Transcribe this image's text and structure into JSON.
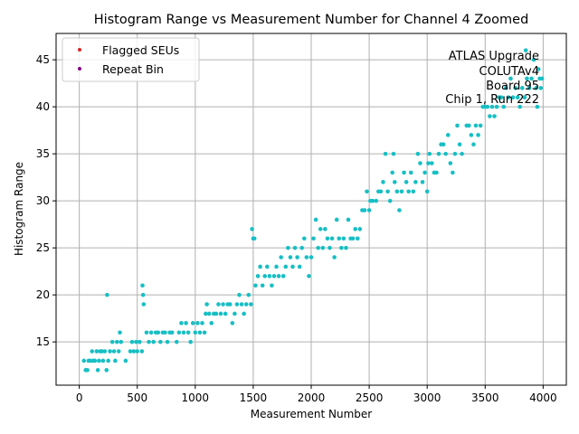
{
  "chart_data": {
    "type": "scatter",
    "title": "Histogram Range vs Measurement Number for Channel 4 Zoomed",
    "xlabel": "Measurement Number",
    "ylabel": "Histogram Range",
    "xlim": [
      -200,
      4200
    ],
    "ylim": [
      10.4,
      47.8
    ],
    "xticks": [
      0,
      500,
      1000,
      1500,
      2000,
      2500,
      3000,
      3500,
      4000
    ],
    "yticks": [
      15,
      20,
      25,
      30,
      35,
      40,
      45
    ],
    "grid": true,
    "legend": {
      "placement": "top-left",
      "entries": [
        {
          "label": "Flagged SEUs",
          "color": "#d62728"
        },
        {
          "label": "Repeat Bin",
          "color": "#800080"
        }
      ]
    },
    "annotation": {
      "placement": "top-right",
      "lines": [
        "ATLAS Upgrade",
        "COLUTAv4",
        "Board 95",
        "Chip 1, Run 222"
      ]
    },
    "series": [
      {
        "name": "Histogram Range",
        "color": "#17bfc4",
        "points": [
          [
            40,
            13
          ],
          [
            55,
            12
          ],
          [
            70,
            12
          ],
          [
            80,
            13
          ],
          [
            95,
            13
          ],
          [
            110,
            14
          ],
          [
            120,
            13
          ],
          [
            135,
            13
          ],
          [
            150,
            14
          ],
          [
            160,
            12
          ],
          [
            170,
            13
          ],
          [
            180,
            14
          ],
          [
            195,
            14
          ],
          [
            205,
            13
          ],
          [
            220,
            14
          ],
          [
            235,
            12
          ],
          [
            240,
            20
          ],
          [
            250,
            13
          ],
          [
            265,
            14
          ],
          [
            285,
            15
          ],
          [
            300,
            14
          ],
          [
            310,
            13
          ],
          [
            325,
            15
          ],
          [
            340,
            14
          ],
          [
            350,
            16
          ],
          [
            360,
            15
          ],
          [
            400,
            13
          ],
          [
            440,
            14
          ],
          [
            455,
            15
          ],
          [
            470,
            14
          ],
          [
            490,
            15
          ],
          [
            500,
            14
          ],
          [
            520,
            15
          ],
          [
            540,
            14
          ],
          [
            545,
            21
          ],
          [
            550,
            20
          ],
          [
            555,
            19
          ],
          [
            580,
            16
          ],
          [
            600,
            15
          ],
          [
            620,
            16
          ],
          [
            640,
            15
          ],
          [
            660,
            16
          ],
          [
            680,
            16
          ],
          [
            700,
            15
          ],
          [
            720,
            16
          ],
          [
            740,
            16
          ],
          [
            760,
            15
          ],
          [
            780,
            16
          ],
          [
            800,
            16
          ],
          [
            840,
            15
          ],
          [
            860,
            16
          ],
          [
            880,
            17
          ],
          [
            900,
            16
          ],
          [
            920,
            17
          ],
          [
            940,
            16
          ],
          [
            960,
            15
          ],
          [
            980,
            17
          ],
          [
            1000,
            16
          ],
          [
            1020,
            17
          ],
          [
            1040,
            16
          ],
          [
            1060,
            17
          ],
          [
            1080,
            16
          ],
          [
            1090,
            18
          ],
          [
            1100,
            19
          ],
          [
            1120,
            18
          ],
          [
            1140,
            17
          ],
          [
            1160,
            18
          ],
          [
            1180,
            18
          ],
          [
            1200,
            19
          ],
          [
            1220,
            18
          ],
          [
            1240,
            19
          ],
          [
            1260,
            18
          ],
          [
            1280,
            19
          ],
          [
            1300,
            19
          ],
          [
            1320,
            17
          ],
          [
            1340,
            18
          ],
          [
            1360,
            19
          ],
          [
            1380,
            20
          ],
          [
            1400,
            19
          ],
          [
            1420,
            18
          ],
          [
            1440,
            19
          ],
          [
            1460,
            20
          ],
          [
            1480,
            19
          ],
          [
            1490,
            27
          ],
          [
            1500,
            26
          ],
          [
            1510,
            26
          ],
          [
            1520,
            21
          ],
          [
            1540,
            22
          ],
          [
            1560,
            23
          ],
          [
            1580,
            21
          ],
          [
            1600,
            22
          ],
          [
            1620,
            23
          ],
          [
            1640,
            22
          ],
          [
            1660,
            21
          ],
          [
            1680,
            22
          ],
          [
            1700,
            23
          ],
          [
            1720,
            22
          ],
          [
            1740,
            24
          ],
          [
            1760,
            22
          ],
          [
            1780,
            23
          ],
          [
            1800,
            25
          ],
          [
            1820,
            24
          ],
          [
            1840,
            23
          ],
          [
            1860,
            25
          ],
          [
            1880,
            24
          ],
          [
            1900,
            23
          ],
          [
            1920,
            25
          ],
          [
            1940,
            26
          ],
          [
            1960,
            24
          ],
          [
            1980,
            22
          ],
          [
            2000,
            24
          ],
          [
            2020,
            26
          ],
          [
            2040,
            28
          ],
          [
            2060,
            25
          ],
          [
            2080,
            27
          ],
          [
            2100,
            25
          ],
          [
            2120,
            27
          ],
          [
            2140,
            26
          ],
          [
            2160,
            25
          ],
          [
            2180,
            26
          ],
          [
            2200,
            24
          ],
          [
            2220,
            28
          ],
          [
            2240,
            26
          ],
          [
            2260,
            25
          ],
          [
            2280,
            26
          ],
          [
            2300,
            25
          ],
          [
            2320,
            28
          ],
          [
            2340,
            26
          ],
          [
            2360,
            26
          ],
          [
            2380,
            27
          ],
          [
            2400,
            26
          ],
          [
            2420,
            27
          ],
          [
            2440,
            29
          ],
          [
            2460,
            29
          ],
          [
            2480,
            31
          ],
          [
            2500,
            29
          ],
          [
            2510,
            30
          ],
          [
            2530,
            30
          ],
          [
            2560,
            30
          ],
          [
            2580,
            31
          ],
          [
            2600,
            31
          ],
          [
            2620,
            32
          ],
          [
            2640,
            35
          ],
          [
            2660,
            31
          ],
          [
            2680,
            30
          ],
          [
            2700,
            33
          ],
          [
            2710,
            35
          ],
          [
            2720,
            32
          ],
          [
            2740,
            31
          ],
          [
            2760,
            29
          ],
          [
            2780,
            31
          ],
          [
            2800,
            33
          ],
          [
            2820,
            32
          ],
          [
            2840,
            31
          ],
          [
            2860,
            33
          ],
          [
            2880,
            31
          ],
          [
            2900,
            32
          ],
          [
            2920,
            35
          ],
          [
            2940,
            34
          ],
          [
            2960,
            32
          ],
          [
            2980,
            33
          ],
          [
            3000,
            31
          ],
          [
            3010,
            34
          ],
          [
            3020,
            35
          ],
          [
            3040,
            34
          ],
          [
            3060,
            33
          ],
          [
            3080,
            33
          ],
          [
            3100,
            35
          ],
          [
            3120,
            36
          ],
          [
            3140,
            36
          ],
          [
            3160,
            35
          ],
          [
            3180,
            37
          ],
          [
            3200,
            34
          ],
          [
            3220,
            33
          ],
          [
            3240,
            35
          ],
          [
            3260,
            38
          ],
          [
            3280,
            36
          ],
          [
            3300,
            35
          ],
          [
            3340,
            38
          ],
          [
            3360,
            38
          ],
          [
            3380,
            37
          ],
          [
            3400,
            36
          ],
          [
            3420,
            38
          ],
          [
            3440,
            37
          ],
          [
            3460,
            38
          ],
          [
            3480,
            40
          ],
          [
            3500,
            40
          ],
          [
            3520,
            40
          ],
          [
            3540,
            39
          ],
          [
            3560,
            40
          ],
          [
            3580,
            39
          ],
          [
            3600,
            40
          ],
          [
            3620,
            41
          ],
          [
            3640,
            41
          ],
          [
            3660,
            40
          ],
          [
            3680,
            42
          ],
          [
            3700,
            41
          ],
          [
            3720,
            43
          ],
          [
            3740,
            41
          ],
          [
            3760,
            42
          ],
          [
            3780,
            41
          ],
          [
            3800,
            40
          ],
          [
            3820,
            42
          ],
          [
            3840,
            41
          ],
          [
            3850,
            46
          ],
          [
            3860,
            43
          ],
          [
            3880,
            42
          ],
          [
            3900,
            43
          ],
          [
            3920,
            45
          ],
          [
            3940,
            42
          ],
          [
            3950,
            40
          ],
          [
            3960,
            44
          ],
          [
            3970,
            43
          ],
          [
            3980,
            42
          ],
          [
            3990,
            43
          ]
        ]
      },
      {
        "name": "Flagged SEUs",
        "color": "#d62728",
        "points": []
      },
      {
        "name": "Repeat Bin",
        "color": "#800080",
        "points": []
      }
    ]
  }
}
